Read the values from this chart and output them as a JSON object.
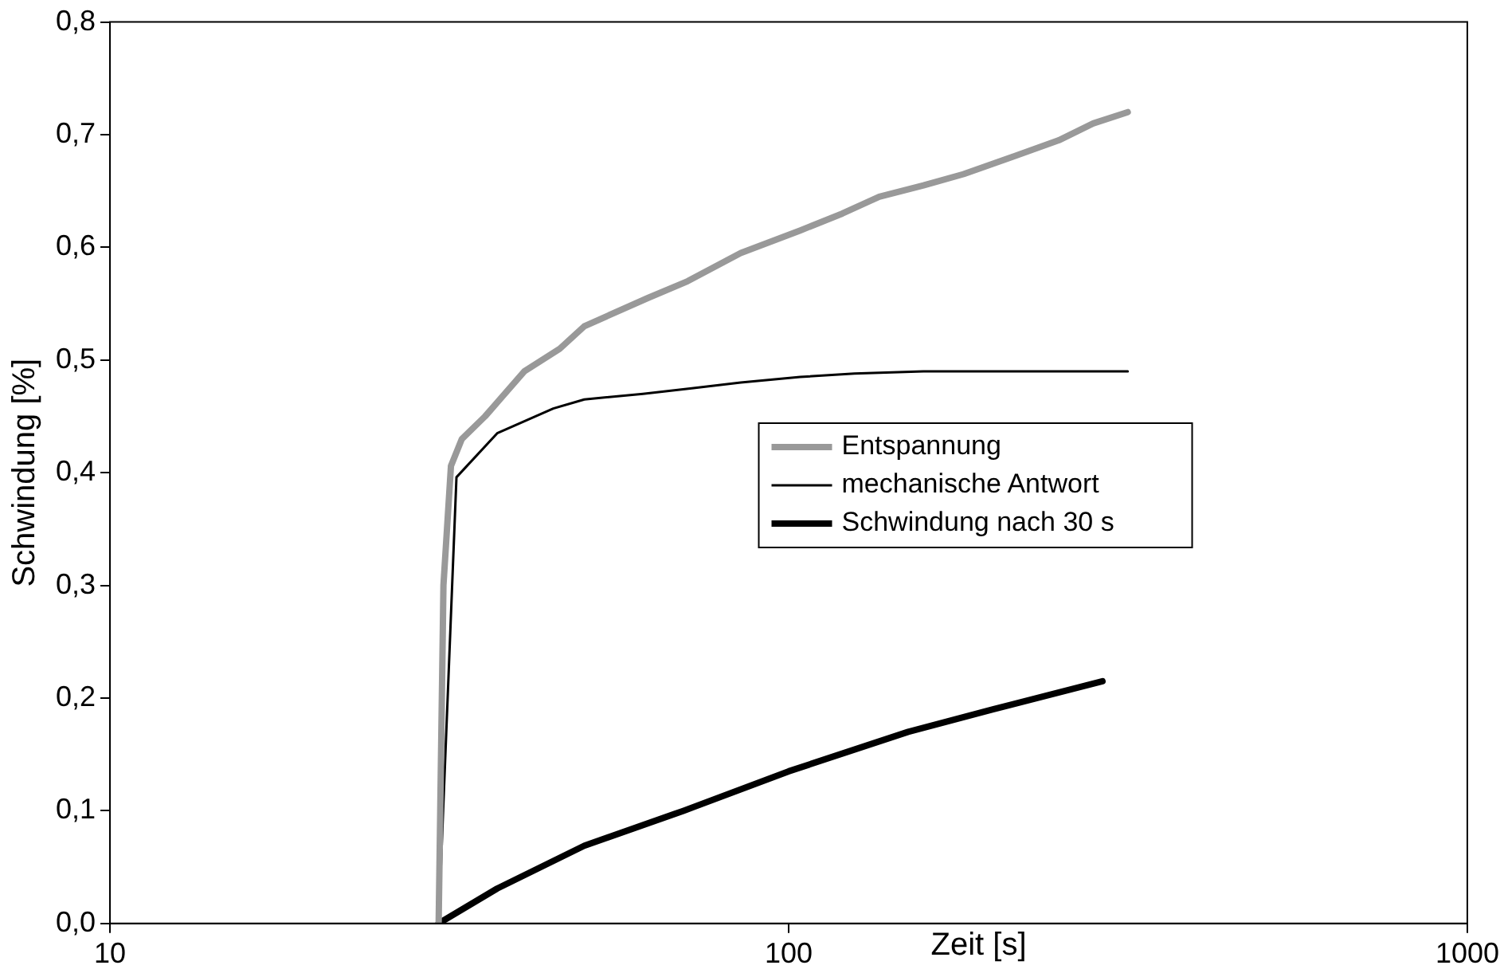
{
  "chart_data": {
    "type": "line",
    "xlabel": "Zeit [s]",
    "ylabel": "Schwindung [%]",
    "log": "x",
    "xlim": [
      10,
      1000
    ],
    "xticks": [
      10,
      100,
      1000
    ],
    "ylim": [
      0,
      0.8
    ],
    "yticks": [
      {
        "value": 0,
        "label": "0,0"
      },
      {
        "value": 0.1,
        "label": "0,1"
      },
      {
        "value": 0.2,
        "label": "0,2"
      },
      {
        "value": 0.3,
        "label": "0,3"
      },
      {
        "value": 0.4,
        "label": "0,4"
      },
      {
        "value": 0.5,
        "label": "0,5"
      },
      {
        "value": 0.6,
        "label": "0,6"
      },
      {
        "value": 0.7,
        "label": "0,7"
      },
      {
        "value": 0.8,
        "label": "0,8"
      }
    ],
    "grid": false,
    "legend": "right",
    "marker": "none",
    "line_style": "solid",
    "series": [
      {
        "name": "Entspannung",
        "color": "#999999",
        "x": [
          30.5,
          31,
          31.8,
          33,
          35.7,
          40.8,
          46,
          50,
          62,
          71,
          85,
          104,
          120,
          136,
          158,
          181,
          213,
          250,
          281,
          316
        ],
        "values": [
          0,
          0.3,
          0.406,
          0.43,
          0.45,
          0.49,
          0.51,
          0.53,
          0.555,
          0.57,
          0.595,
          0.615,
          0.63,
          0.645,
          0.655,
          0.665,
          0.68,
          0.695,
          0.71,
          0.72
        ]
      },
      {
        "name": "mechanische Antwort",
        "color": "#000000",
        "x": [
          30.5,
          32.4,
          37.2,
          45,
          50,
          61,
          72,
          85,
          104,
          125,
          158,
          213,
          250,
          316
        ],
        "values": [
          0,
          0.396,
          0.435,
          0.457,
          0.465,
          0.47,
          0.475,
          0.48,
          0.485,
          0.488,
          0.49,
          0.49,
          0.49,
          0.49
        ]
      },
      {
        "name": "Schwindung nach 30 s",
        "color": "#000000",
        "x": [
          30.5,
          37.2,
          50,
          70,
          100,
          150,
          200,
          290
        ],
        "values": [
          0,
          0.031,
          0.069,
          0.1,
          0.135,
          0.17,
          0.19,
          0.215
        ]
      }
    ]
  }
}
